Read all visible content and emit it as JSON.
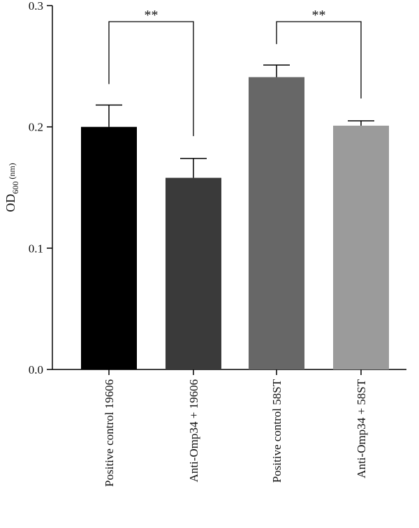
{
  "chart_data": {
    "type": "bar",
    "categories": [
      "Positive control 19606",
      "Anti-Omp34 + 19606",
      "Positive control 58ST",
      "Anti-Omp34 + 58ST"
    ],
    "values": [
      0.2,
      0.158,
      0.241,
      0.201
    ],
    "errors": [
      0.018,
      0.016,
      0.01,
      0.004
    ],
    "bar_colors": [
      "#000000",
      "#3a3a3a",
      "#676767",
      "#9b9b9b"
    ],
    "ylabel": {
      "main": "OD",
      "sub": "600",
      "unit": " (nm)"
    },
    "ylim": [
      0,
      0.3
    ],
    "yticks": [
      "0.0",
      "0.1",
      "0.2",
      "0.3"
    ],
    "significance": [
      {
        "pair": [
          0,
          1
        ],
        "label": "**"
      },
      {
        "pair": [
          2,
          3
        ],
        "label": "**"
      }
    ],
    "grid": false,
    "legend": "none"
  }
}
